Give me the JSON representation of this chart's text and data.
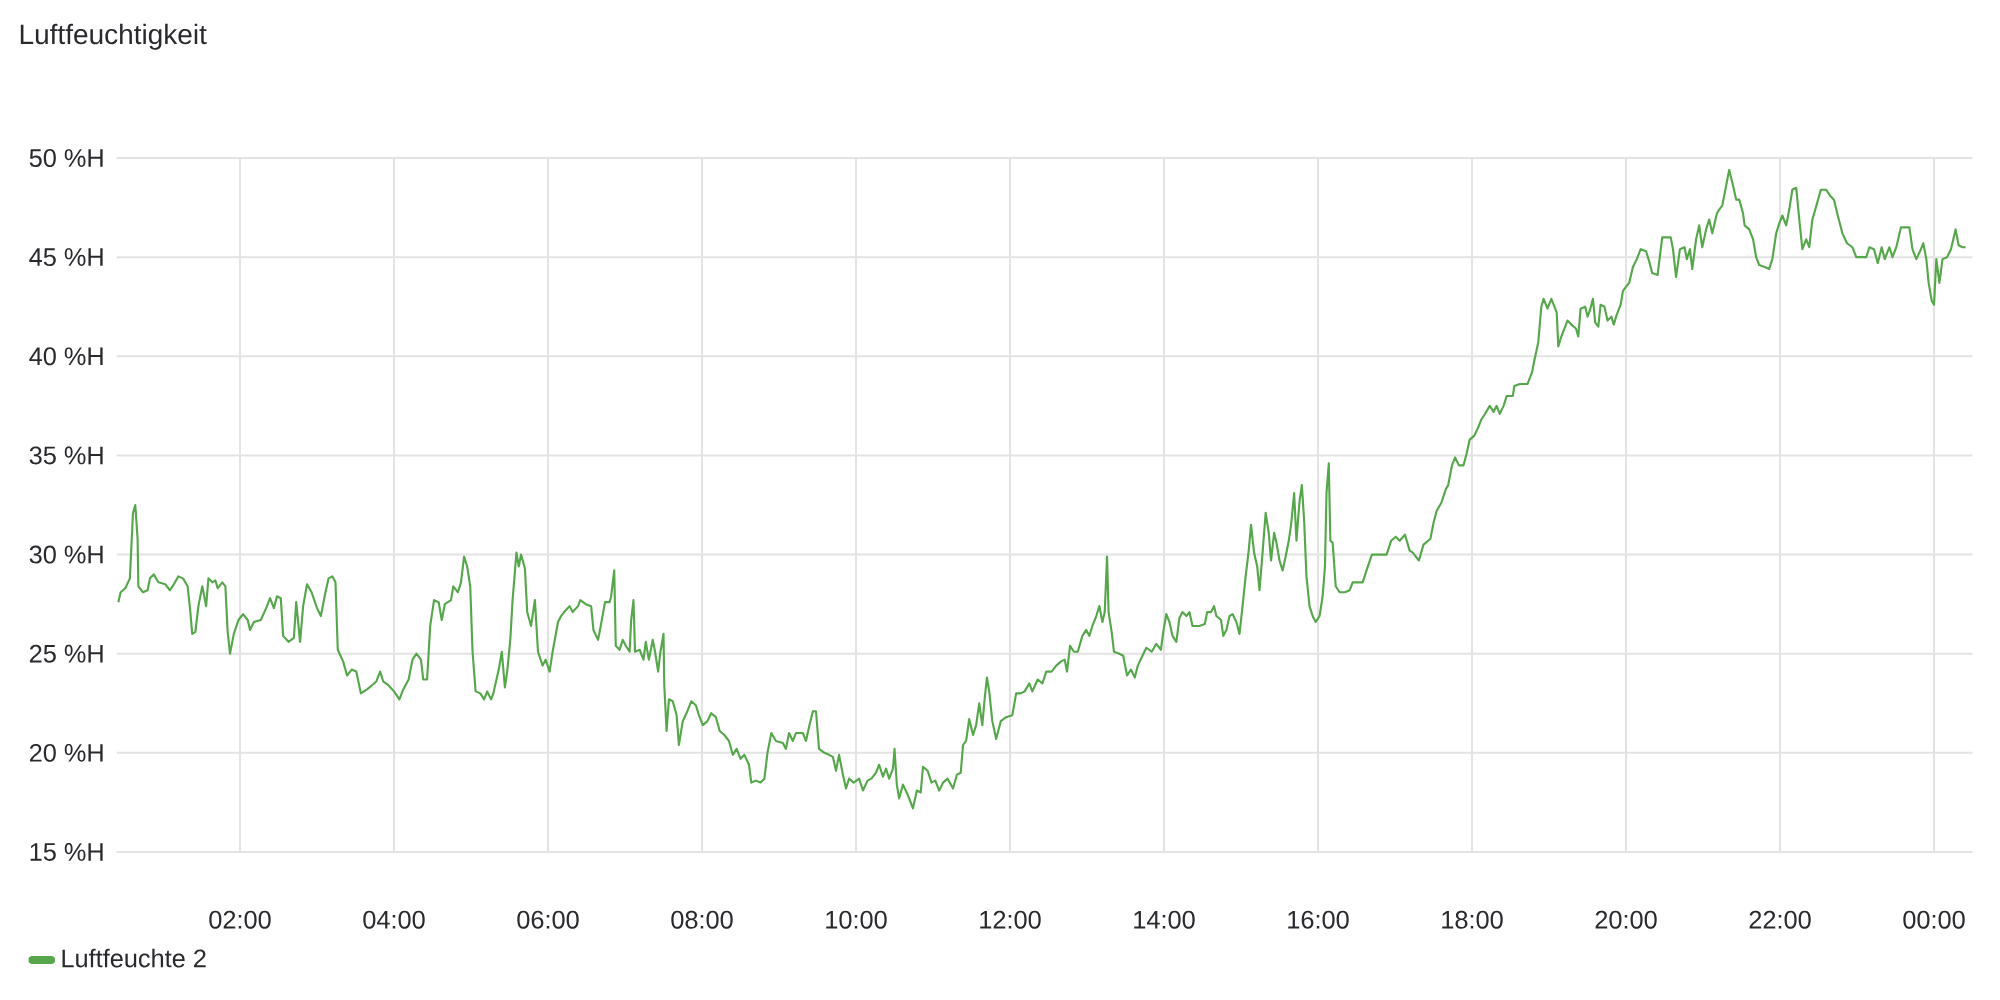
{
  "chart_data": {
    "type": "line",
    "title": "Luftfeuchtigkeit",
    "x": [
      0.42,
      0.45,
      0.51,
      0.57,
      0.61,
      0.64,
      0.67,
      0.68,
      0.74,
      0.8,
      0.83,
      0.88,
      0.94,
      1.03,
      1.09,
      1.14,
      1.2,
      1.26,
      1.32,
      1.35,
      1.38,
      1.42,
      1.46,
      1.51,
      1.56,
      1.59,
      1.64,
      1.68,
      1.71,
      1.77,
      1.81,
      1.84,
      1.87,
      1.92,
      1.98,
      2.04,
      2.1,
      2.13,
      2.18,
      2.27,
      2.34,
      2.39,
      2.44,
      2.48,
      2.53,
      2.56,
      2.63,
      2.7,
      2.73,
      2.78,
      2.82,
      2.87,
      2.93,
      3.0,
      3.05,
      3.11,
      3.15,
      3.2,
      3.24,
      3.27,
      3.34,
      3.39,
      3.45,
      3.51,
      3.57,
      3.65,
      3.71,
      3.77,
      3.82,
      3.86,
      3.93,
      4.0,
      4.07,
      4.12,
      4.19,
      4.24,
      4.29,
      4.35,
      4.38,
      4.43,
      4.47,
      4.52,
      4.58,
      4.62,
      4.66,
      4.74,
      4.77,
      4.83,
      4.87,
      4.91,
      4.95,
      4.99,
      5.02,
      5.06,
      5.12,
      5.17,
      5.21,
      5.26,
      5.29,
      5.36,
      5.4,
      5.44,
      5.47,
      5.51,
      5.54,
      5.59,
      5.62,
      5.65,
      5.7,
      5.73,
      5.78,
      5.83,
      5.87,
      5.93,
      5.97,
      6.02,
      6.06,
      6.13,
      6.17,
      6.21,
      6.28,
      6.32,
      6.39,
      6.42,
      6.49,
      6.56,
      6.59,
      6.65,
      6.68,
      6.74,
      6.8,
      6.82,
      6.86,
      6.88,
      6.93,
      6.97,
      7.01,
      7.06,
      7.08,
      7.11,
      7.13,
      7.19,
      7.24,
      7.27,
      7.31,
      7.36,
      7.39,
      7.43,
      7.46,
      7.5,
      7.51,
      7.54,
      7.57,
      7.62,
      7.67,
      7.7,
      7.75,
      7.81,
      7.86,
      7.92,
      7.96,
      8.01,
      8.07,
      8.12,
      8.18,
      8.23,
      8.29,
      8.35,
      8.4,
      8.45,
      8.5,
      8.55,
      8.61,
      8.64,
      8.7,
      8.76,
      8.81,
      8.85,
      8.9,
      8.96,
      9.05,
      9.09,
      9.13,
      9.18,
      9.22,
      9.31,
      9.35,
      9.39,
      9.44,
      9.48,
      9.52,
      9.59,
      9.65,
      9.7,
      9.74,
      9.78,
      9.83,
      9.87,
      9.91,
      9.97,
      10.04,
      10.09,
      10.15,
      10.2,
      10.26,
      10.3,
      10.35,
      10.39,
      10.43,
      10.48,
      10.5,
      10.53,
      10.56,
      10.61,
      10.67,
      10.74,
      10.79,
      10.84,
      10.87,
      10.93,
      10.98,
      11.03,
      11.08,
      11.13,
      11.19,
      11.26,
      11.31,
      11.36,
      11.39,
      11.43,
      11.47,
      11.52,
      11.56,
      11.6,
      11.64,
      11.67,
      11.7,
      11.73,
      11.77,
      11.82,
      11.88,
      11.95,
      12.03,
      12.08,
      12.14,
      12.19,
      12.25,
      12.29,
      12.36,
      12.42,
      12.47,
      12.54,
      12.6,
      12.66,
      12.71,
      12.74,
      12.78,
      12.83,
      12.88,
      12.94,
      12.99,
      13.03,
      13.07,
      13.12,
      13.16,
      13.2,
      13.23,
      13.26,
      13.28,
      13.32,
      13.35,
      13.42,
      13.47,
      13.52,
      13.57,
      13.62,
      13.66,
      13.72,
      13.77,
      13.84,
      13.9,
      13.96,
      13.99,
      14.03,
      14.07,
      14.11,
      14.16,
      14.2,
      14.24,
      14.29,
      14.33,
      14.37,
      14.46,
      14.53,
      14.56,
      14.61,
      14.65,
      14.68,
      14.74,
      14.77,
      14.81,
      14.85,
      14.89,
      14.94,
      14.98,
      15.02,
      15.06,
      15.1,
      15.13,
      15.17,
      15.21,
      15.24,
      15.28,
      15.32,
      15.36,
      15.39,
      15.43,
      15.46,
      15.5,
      15.54,
      15.58,
      15.62,
      15.65,
      15.69,
      15.72,
      15.76,
      15.79,
      15.82,
      15.85,
      15.89,
      15.93,
      15.97,
      16.02,
      16.06,
      16.09,
      16.11,
      16.14,
      16.16,
      16.19,
      16.23,
      16.28,
      16.35,
      16.41,
      16.45,
      16.58,
      16.63,
      16.7,
      16.89,
      16.95,
      17.01,
      17.06,
      17.13,
      17.19,
      17.23,
      17.31,
      17.37,
      17.46,
      17.5,
      17.54,
      17.6,
      17.66,
      17.69,
      17.74,
      17.78,
      17.83,
      17.89,
      17.93,
      17.97,
      18.03,
      18.09,
      18.12,
      18.17,
      18.23,
      18.28,
      18.32,
      18.36,
      18.41,
      18.45,
      18.53,
      18.55,
      18.62,
      18.72,
      18.78,
      18.81,
      18.86,
      18.9,
      18.93,
      18.98,
      19.03,
      19.07,
      19.1,
      19.12,
      19.16,
      19.21,
      19.24,
      19.29,
      19.35,
      19.38,
      19.41,
      19.47,
      19.5,
      19.53,
      19.57,
      19.6,
      19.64,
      19.67,
      19.72,
      19.76,
      19.81,
      19.84,
      19.88,
      19.93,
      19.96,
      20.0,
      20.04,
      20.09,
      20.14,
      20.19,
      20.26,
      20.3,
      20.34,
      20.41,
      20.47,
      20.58,
      20.61,
      20.65,
      20.7,
      20.76,
      20.79,
      20.83,
      20.86,
      20.91,
      20.95,
      20.99,
      21.04,
      21.08,
      21.12,
      21.18,
      21.21,
      21.25,
      21.3,
      21.34,
      21.39,
      21.43,
      21.47,
      21.52,
      21.54,
      21.6,
      21.65,
      21.69,
      21.73,
      21.8,
      21.86,
      21.9,
      21.95,
      21.99,
      22.03,
      22.08,
      22.12,
      22.16,
      22.21,
      22.25,
      22.29,
      22.34,
      22.38,
      22.42,
      22.48,
      22.53,
      22.6,
      22.65,
      22.7,
      22.75,
      22.81,
      22.87,
      22.94,
      22.99,
      23.12,
      23.16,
      23.22,
      23.27,
      23.32,
      23.36,
      23.42,
      23.46,
      23.51,
      23.57,
      23.68,
      23.72,
      23.77,
      23.83,
      23.86,
      23.9,
      23.93,
      23.97,
      24.0,
      24.03,
      24.07,
      24.11,
      24.17,
      24.22,
      24.28,
      24.32,
      24.37,
      24.41
    ],
    "series": [
      {
        "name": "Luftfeuchte 2",
        "color": "#56a64b",
        "values": [
          27.6,
          28.1,
          28.3,
          28.8,
          32.1,
          32.5,
          30.8,
          28.4,
          28.1,
          28.2,
          28.8,
          29.0,
          28.6,
          28.5,
          28.2,
          28.5,
          28.9,
          28.8,
          28.4,
          27.3,
          26.0,
          26.1,
          27.4,
          28.4,
          27.4,
          28.8,
          28.6,
          28.7,
          28.3,
          28.6,
          28.4,
          26.1,
          25.0,
          26.0,
          26.7,
          27.0,
          26.7,
          26.2,
          26.6,
          26.7,
          27.3,
          27.8,
          27.3,
          27.9,
          27.8,
          25.9,
          25.6,
          25.8,
          27.6,
          25.6,
          27.4,
          28.5,
          28.1,
          27.3,
          26.9,
          28.1,
          28.8,
          28.9,
          28.6,
          25.2,
          24.6,
          23.9,
          24.2,
          24.1,
          23.0,
          23.2,
          23.4,
          23.6,
          24.1,
          23.6,
          23.4,
          23.1,
          22.7,
          23.2,
          23.7,
          24.7,
          25.0,
          24.7,
          23.7,
          23.7,
          26.4,
          27.7,
          27.6,
          26.7,
          27.5,
          27.7,
          28.4,
          28.1,
          28.6,
          29.9,
          29.4,
          28.4,
          25.1,
          23.1,
          23.0,
          22.7,
          23.1,
          22.7,
          23.0,
          24.2,
          25.1,
          23.3,
          24.1,
          25.7,
          27.7,
          30.1,
          29.4,
          30.0,
          29.3,
          27.1,
          26.4,
          27.7,
          25.1,
          24.4,
          24.7,
          24.1,
          25.1,
          26.6,
          26.9,
          27.1,
          27.4,
          27.1,
          27.4,
          27.7,
          27.5,
          27.4,
          26.2,
          25.7,
          26.3,
          27.6,
          27.6,
          27.9,
          29.2,
          25.4,
          25.2,
          25.7,
          25.4,
          25.1,
          26.7,
          27.7,
          25.1,
          25.2,
          24.7,
          25.6,
          24.7,
          25.7,
          25.1,
          24.1,
          25.1,
          26.0,
          23.4,
          21.1,
          22.7,
          22.6,
          21.9,
          20.4,
          21.6,
          22.1,
          22.6,
          22.4,
          21.9,
          21.4,
          21.6,
          22.0,
          21.8,
          21.1,
          20.9,
          20.6,
          19.9,
          20.2,
          19.7,
          19.9,
          19.4,
          18.5,
          18.6,
          18.5,
          18.7,
          20.0,
          21.0,
          20.6,
          20.5,
          20.2,
          21.0,
          20.6,
          21.0,
          21.0,
          20.6,
          21.3,
          22.1,
          22.1,
          20.2,
          20.0,
          19.9,
          19.8,
          19.1,
          19.9,
          18.9,
          18.2,
          18.7,
          18.5,
          18.7,
          18.1,
          18.6,
          18.7,
          19.0,
          19.4,
          18.8,
          19.2,
          18.7,
          19.2,
          20.2,
          18.4,
          17.7,
          18.4,
          17.9,
          17.2,
          18.1,
          18.0,
          19.3,
          19.1,
          18.5,
          18.6,
          18.1,
          18.5,
          18.7,
          18.2,
          18.9,
          19.0,
          20.4,
          20.6,
          21.7,
          20.9,
          21.4,
          22.5,
          21.4,
          22.7,
          23.8,
          23.1,
          21.6,
          20.7,
          21.6,
          21.8,
          21.9,
          23.0,
          23.0,
          23.1,
          23.5,
          23.1,
          23.7,
          23.5,
          24.1,
          24.1,
          24.4,
          24.6,
          24.7,
          24.1,
          25.4,
          25.1,
          25.1,
          25.9,
          26.2,
          25.9,
          26.4,
          26.9,
          27.4,
          26.6,
          27.1,
          29.9,
          27.1,
          26.1,
          25.1,
          25.0,
          24.9,
          23.9,
          24.2,
          23.8,
          24.4,
          24.9,
          25.3,
          25.1,
          25.5,
          25.2,
          26.1,
          27.0,
          26.6,
          25.9,
          25.6,
          26.8,
          27.1,
          26.9,
          27.1,
          26.4,
          26.4,
          26.5,
          27.1,
          27.1,
          27.4,
          26.9,
          26.7,
          25.9,
          26.2,
          26.9,
          27.0,
          26.6,
          26.0,
          27.4,
          28.9,
          30.2,
          31.5,
          30.1,
          29.4,
          28.2,
          30.1,
          32.1,
          31.1,
          29.7,
          31.1,
          30.6,
          29.7,
          29.2,
          29.9,
          30.7,
          31.5,
          33.1,
          30.7,
          32.7,
          33.5,
          31.7,
          28.9,
          27.4,
          26.9,
          26.6,
          26.9,
          27.9,
          29.4,
          33.1,
          34.6,
          30.7,
          30.6,
          28.4,
          28.1,
          28.1,
          28.2,
          28.6,
          28.6,
          29.2,
          30.0,
          30.0,
          30.7,
          30.9,
          30.7,
          31.0,
          30.2,
          30.1,
          29.7,
          30.5,
          30.8,
          31.6,
          32.2,
          32.6,
          33.3,
          33.5,
          34.5,
          34.9,
          34.5,
          34.5,
          35.1,
          35.8,
          36.0,
          36.5,
          36.8,
          37.1,
          37.5,
          37.2,
          37.5,
          37.1,
          37.5,
          38.0,
          38.0,
          38.5,
          38.6,
          38.6,
          39.2,
          39.8,
          40.7,
          42.5,
          42.9,
          42.4,
          42.9,
          42.5,
          42.2,
          40.5,
          41.0,
          41.5,
          41.8,
          41.6,
          41.4,
          41.0,
          42.4,
          42.5,
          42.0,
          42.3,
          42.9,
          41.7,
          41.5,
          42.6,
          42.5,
          41.8,
          42.0,
          41.6,
          42.1,
          42.6,
          43.3,
          43.5,
          43.7,
          44.5,
          44.9,
          45.4,
          45.3,
          44.8,
          44.2,
          44.1,
          46.0,
          46.0,
          45.4,
          44.0,
          45.4,
          45.5,
          44.9,
          45.4,
          44.4,
          45.9,
          46.6,
          45.5,
          46.4,
          46.9,
          46.2,
          47.2,
          47.4,
          47.6,
          48.6,
          49.4,
          48.6,
          47.9,
          47.9,
          47.2,
          46.6,
          46.4,
          45.9,
          45.0,
          44.6,
          44.5,
          44.4,
          44.9,
          46.2,
          46.7,
          47.1,
          46.6,
          47.4,
          48.4,
          48.5,
          46.9,
          45.4,
          45.9,
          45.5,
          46.9,
          47.7,
          48.4,
          48.4,
          48.1,
          47.9,
          47.1,
          46.2,
          45.7,
          45.5,
          45.0,
          45.0,
          45.5,
          45.4,
          44.7,
          45.5,
          44.9,
          45.5,
          45.0,
          45.5,
          46.5,
          46.5,
          45.4,
          44.9,
          45.4,
          45.7,
          44.9,
          43.7,
          42.8,
          42.6,
          44.9,
          43.7,
          44.9,
          45.0,
          45.4,
          46.4,
          45.6,
          45.5,
          45.5
        ]
      }
    ],
    "xlim": [
      0.4,
      24.5
    ],
    "xticks": [
      {
        "value": 2,
        "label": "02:00"
      },
      {
        "value": 4,
        "label": "04:00"
      },
      {
        "value": 6,
        "label": "06:00"
      },
      {
        "value": 8,
        "label": "08:00"
      },
      {
        "value": 10,
        "label": "10:00"
      },
      {
        "value": 12,
        "label": "12:00"
      },
      {
        "value": 14,
        "label": "14:00"
      },
      {
        "value": 16,
        "label": "16:00"
      },
      {
        "value": 18,
        "label": "18:00"
      },
      {
        "value": 20,
        "label": "20:00"
      },
      {
        "value": 22,
        "label": "22:00"
      },
      {
        "value": 24,
        "label": "00:00"
      }
    ],
    "ylim": [
      15,
      50
    ],
    "yticks": [
      {
        "value": 15,
        "label": "15 %H"
      },
      {
        "value": 20,
        "label": "20 %H"
      },
      {
        "value": 25,
        "label": "25 %H"
      },
      {
        "value": 30,
        "label": "30 %H"
      },
      {
        "value": 35,
        "label": "35 %H"
      },
      {
        "value": 40,
        "label": "40 %H"
      },
      {
        "value": 45,
        "label": "45 %H"
      },
      {
        "value": 50,
        "label": "50 %H"
      }
    ],
    "grid": true,
    "legend": "bottom left",
    "marker": "none",
    "line_style": "solid"
  }
}
